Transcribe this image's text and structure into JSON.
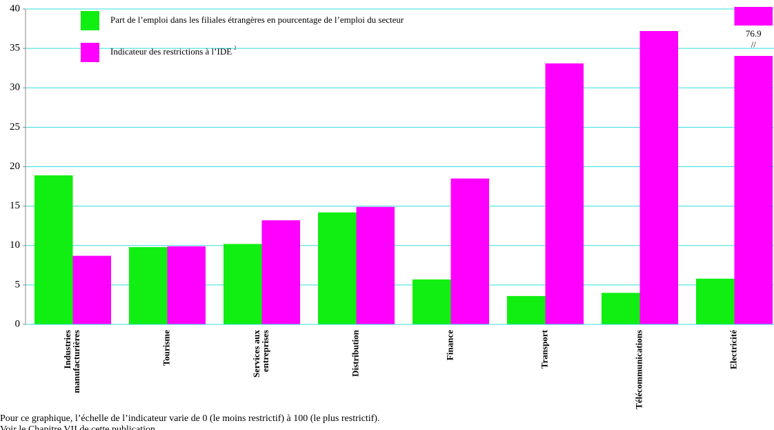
{
  "chart_data": {
    "type": "bar",
    "categories": [
      [
        "Industries",
        "manufacturières"
      ],
      [
        "Tourisme"
      ],
      [
        "Services aux",
        "entreprises"
      ],
      [
        "Distribution"
      ],
      [
        "Finance"
      ],
      [
        "Transport"
      ],
      [
        "Télécommunications"
      ],
      [
        "Electricité"
      ]
    ],
    "series": [
      {
        "name": "Part de l’emploi dans les filiales étrangères en pourcentage de l’emploi du secteur",
        "color": "#11ee11",
        "values": [
          18.9,
          9.8,
          10.2,
          14.2,
          5.7,
          3.6,
          4.0,
          5.8
        ]
      },
      {
        "name": "Indicateur des restrictions à l’IDE",
        "name_footnote": "2",
        "color": "#ff00ff",
        "values": [
          8.7,
          9.9,
          13.2,
          14.9,
          18.5,
          33.1,
          37.2,
          76.9
        ],
        "value_labels": [
          null,
          null,
          null,
          null,
          null,
          null,
          null,
          "76.9"
        ],
        "break_mark": "//"
      }
    ],
    "ylim": [
      0,
      40
    ],
    "yticks": [
      0,
      5,
      10,
      15,
      20,
      25,
      30,
      35,
      40
    ],
    "grid": true,
    "notes": [
      "Pour ce graphique, l’échelle de l’indicateur varie de 0 (le moins restrictif) à 100 (le plus restrictif).",
      "Voir le Chapitre VII de cette publication."
    ]
  }
}
